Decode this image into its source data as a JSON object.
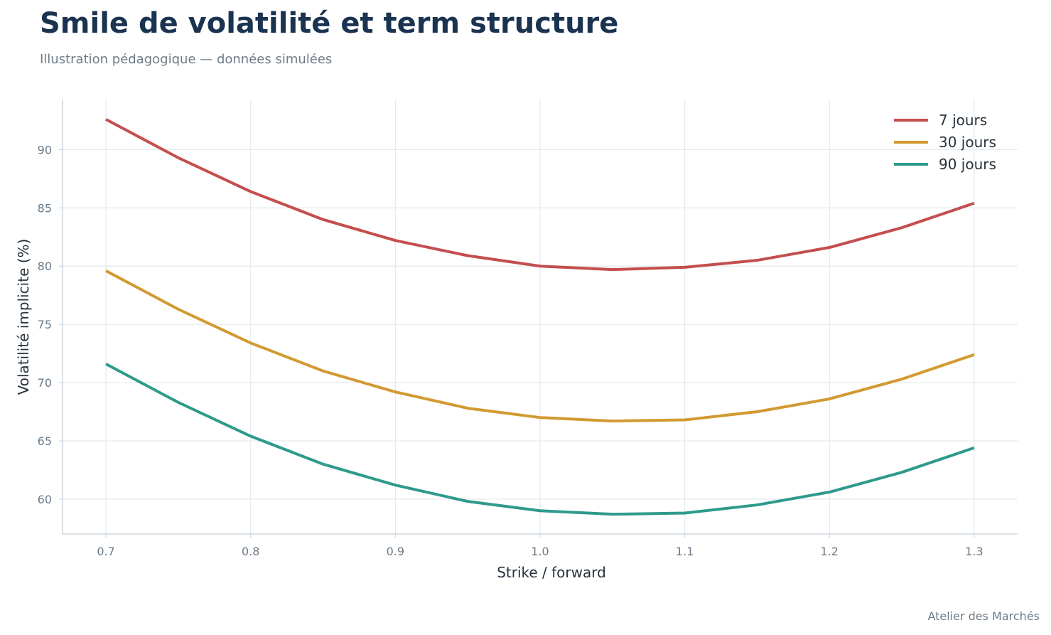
{
  "header": {
    "title": "Smile de volatilité et term structure",
    "subtitle": "Illustration pédagogique — données simulées"
  },
  "footer": {
    "credit": "Atelier des Marchés"
  },
  "chart_data": {
    "type": "line",
    "xlabel": "Strike / forward",
    "ylabel": "Volatilité implicite (%)",
    "xlim": [
      0.67,
      1.33
    ],
    "ylim": [
      57,
      94.3
    ],
    "x_ticks": [
      "0.7",
      "0.8",
      "0.9",
      "1.0",
      "1.1",
      "1.2",
      "1.3"
    ],
    "y_ticks": [
      "60",
      "65",
      "70",
      "75",
      "80",
      "85",
      "90"
    ],
    "grid": true,
    "legend_position": "top-right",
    "x": [
      0.7,
      0.75,
      0.8,
      0.85,
      0.9,
      0.95,
      1.0,
      1.05,
      1.1,
      1.15,
      1.2,
      1.25,
      1.3
    ],
    "series": [
      {
        "name": "7 jours",
        "color": "#c44e4e",
        "values": [
          92.6,
          89.3,
          86.4,
          84.0,
          82.2,
          80.9,
          80.0,
          79.7,
          79.9,
          80.5,
          81.6,
          83.3,
          85.4
        ]
      },
      {
        "name": "30 jours",
        "color": "#d29a32",
        "values": [
          79.6,
          76.3,
          73.4,
          71.0,
          69.2,
          67.8,
          67.0,
          66.7,
          66.8,
          67.5,
          68.6,
          70.3,
          72.4
        ]
      },
      {
        "name": "90 jours",
        "color": "#2e9a8c",
        "values": [
          71.6,
          68.3,
          65.4,
          63.0,
          61.2,
          59.8,
          59.0,
          58.7,
          58.8,
          59.5,
          60.6,
          62.3,
          64.4
        ]
      }
    ]
  }
}
